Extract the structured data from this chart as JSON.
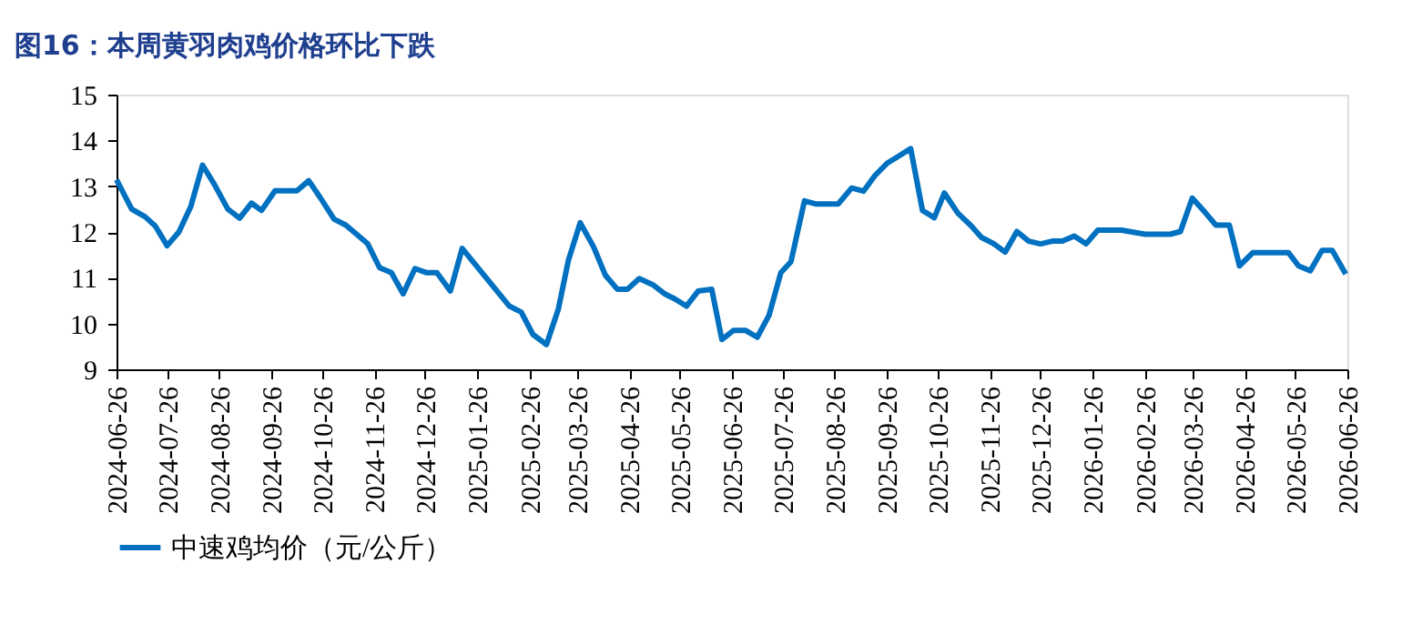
{
  "chart_data": {
    "type": "line",
    "title": "图16：本周黄羽肉鸡价格环比下跌",
    "x": [
      "2024-06-26",
      "2024-07-05",
      "2024-07-13",
      "2024-07-19",
      "2024-07-26",
      "2024-08-02",
      "2024-08-09",
      "2024-08-16",
      "2024-08-23",
      "2024-08-31",
      "2024-09-07",
      "2024-09-14",
      "2024-09-20",
      "2024-09-28",
      "2024-10-11",
      "2024-10-18",
      "2024-10-25",
      "2024-11-02",
      "2024-11-09",
      "2024-11-16",
      "2024-11-22",
      "2024-11-29",
      "2024-12-06",
      "2024-12-13",
      "2024-12-20",
      "2024-12-27",
      "2025-01-02",
      "2025-01-10",
      "2025-01-17",
      "2025-02-14",
      "2025-02-21",
      "2025-02-28",
      "2025-03-08",
      "2025-03-15",
      "2025-03-21",
      "2025-03-28",
      "2025-04-05",
      "2025-04-12",
      "2025-04-19",
      "2025-04-25",
      "2025-05-02",
      "2025-05-10",
      "2025-05-17",
      "2025-05-23",
      "2025-05-30",
      "2025-06-06",
      "2025-06-14",
      "2025-06-20",
      "2025-06-27",
      "2025-07-04",
      "2025-07-11",
      "2025-07-18",
      "2025-07-25",
      "2025-07-31",
      "2025-08-08",
      "2025-08-15",
      "2025-08-28",
      "2025-09-05",
      "2025-09-12",
      "2025-09-19",
      "2025-09-26",
      "2025-10-03",
      "2025-10-10",
      "2025-10-17",
      "2025-10-24",
      "2025-10-30",
      "2025-11-07",
      "2025-11-15",
      "2025-11-21",
      "2025-11-28",
      "2025-12-05",
      "2025-12-12",
      "2025-12-19",
      "2025-12-26",
      "2026-01-02",
      "2026-01-08",
      "2026-01-15",
      "2026-01-22",
      "2026-01-29",
      "2026-02-12",
      "2026-02-26",
      "2026-03-13",
      "2026-03-19",
      "2026-03-26",
      "2026-04-03",
      "2026-04-09",
      "2026-04-17",
      "2026-04-23",
      "2026-05-01",
      "2026-05-22",
      "2026-05-28",
      "2026-06-04",
      "2026-06-11",
      "2026-06-17",
      "2026-06-25"
    ],
    "series": [
      {
        "name": "中速鸡均价（元/公斤）",
        "color": "#0070c0",
        "values": [
          13.14,
          12.5,
          12.33,
          12.13,
          11.7,
          12.0,
          12.55,
          13.46,
          13.04,
          12.5,
          12.3,
          12.63,
          12.47,
          12.9,
          12.9,
          13.12,
          12.74,
          12.28,
          12.15,
          11.93,
          11.74,
          11.22,
          11.11,
          10.65,
          11.2,
          11.11,
          11.11,
          10.71,
          11.64,
          10.38,
          10.25,
          9.76,
          9.54,
          10.31,
          11.38,
          12.2,
          11.67,
          11.05,
          10.75,
          10.75,
          10.98,
          10.85,
          10.65,
          10.54,
          10.38,
          10.71,
          10.75,
          9.65,
          9.85,
          9.85,
          9.7,
          10.18,
          11.11,
          11.35,
          12.68,
          12.61,
          12.61,
          12.96,
          12.89,
          13.24,
          13.5,
          13.66,
          13.82,
          12.47,
          12.31,
          12.85,
          12.41,
          12.13,
          11.88,
          11.75,
          11.56,
          12.01,
          11.8,
          11.74,
          11.8,
          11.8,
          11.91,
          11.74,
          12.04,
          12.04,
          11.95,
          11.95,
          12.01,
          12.74,
          12.41,
          12.15,
          12.15,
          11.26,
          11.55,
          11.55,
          11.26,
          11.15,
          11.6,
          11.6,
          11.08
        ]
      }
    ],
    "xlim": [
      "2024-06-26",
      "2026-06-26"
    ],
    "xticks": [
      "2024-06-26",
      "2024-07-26",
      "2024-08-26",
      "2024-09-26",
      "2024-10-26",
      "2024-11-26",
      "2024-12-26",
      "2025-01-26",
      "2025-02-26",
      "2025-03-26",
      "2025-04-26",
      "2025-05-26",
      "2025-06-26",
      "2025-07-26",
      "2025-08-26",
      "2025-09-26",
      "2025-10-26",
      "2025-11-26",
      "2025-12-26",
      "2026-01-26",
      "2026-02-26",
      "2026-03-26",
      "2026-04-26",
      "2026-05-26",
      "2026-06-26"
    ],
    "ylim": [
      9,
      15
    ],
    "yticks": [
      9,
      10,
      11,
      12,
      13,
      14,
      15
    ],
    "grid": false,
    "legend": "bottom",
    "marker": "none",
    "line_style": "solid"
  }
}
